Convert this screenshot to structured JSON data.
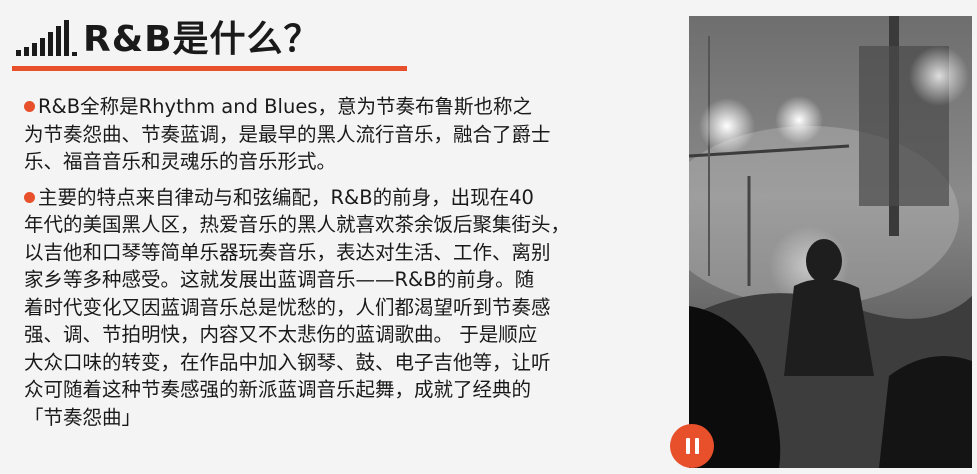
{
  "header": {
    "title": "R&B是什么？",
    "icon": "equalizer-bars-icon"
  },
  "content": {
    "paragraphs": [
      {
        "lines": [
          "R&B全称是Rhythm and Blues，意为节奏布鲁斯也称之",
          "为节奏怨曲、节奏蓝调，是最早的黑人流行音乐，融合了爵士",
          "乐、福音音乐和灵魂乐的音乐形式。"
        ]
      },
      {
        "lines": [
          "主要的特点来自律动与和弦编配，R&B的前身，出现在40",
          "年代的美国黑人区，热爱音乐的黑人就喜欢茶余饭后聚集街头，",
          "以吉他和口琴等简单乐器玩奏音乐，表达对生活、工作、离别",
          "家乡等多种感受。这就发展出蓝调音乐——R&B的前身。随",
          "着时代变化又因蓝调音乐总是忧愁的，人们都渴望听到节奏感",
          "强、调、节拍明快，内容又不太悲伤的蓝调歌曲。 于是顺应",
          "大众口味的转变，在作品中加入钢琴、鼓、电子吉他等，让听",
          "众可随着这种节奏感强的新派蓝调音乐起舞，成就了经典的",
          "「节奏怨曲」"
        ]
      }
    ]
  },
  "media": {
    "photo": "concert-silhouette-photo",
    "control": "pause-icon"
  },
  "colors": {
    "accent": "#e8502c",
    "text": "#1a1a1a",
    "background": "#f4f4f4"
  }
}
